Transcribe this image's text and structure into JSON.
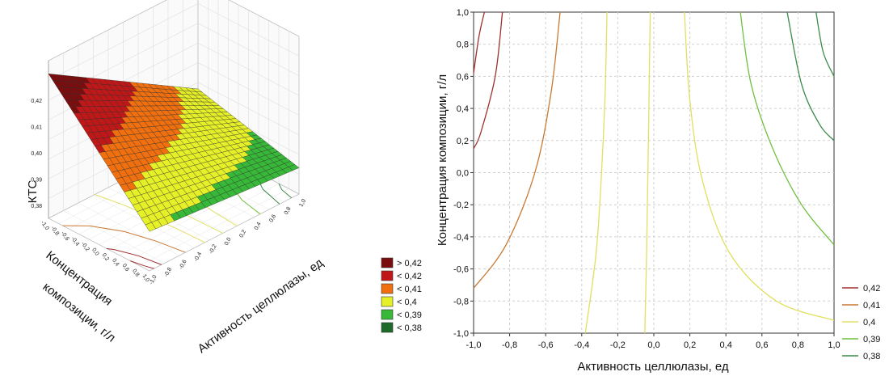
{
  "chart_data": [
    {
      "type": "surface",
      "zlabel": "КТС",
      "xlabel": "Активность целлюлазы, ед",
      "ylabel": "Концентрация композиции, г/л",
      "x_range": [
        -1.0,
        1.0
      ],
      "y_range": [
        -1.0,
        1.0
      ],
      "z_ticks": [
        "0,38",
        "0,39",
        "0,40",
        "0,41",
        "0,42"
      ],
      "x_ticks": [
        "-1,0",
        "-0,8",
        "-0,6",
        "-0,4",
        "-0,2",
        "0,0",
        "0,2",
        "0,4",
        "0,6",
        "0,8",
        "1,0"
      ],
      "y_ticks": [
        "-1,0",
        "-0,8",
        "-0,6",
        "-0,4",
        "-0,2",
        "0,0",
        "0,2",
        "0,4",
        "0,6",
        "0,8",
        "1,0"
      ],
      "surface_corners_z": {
        "x-1_y1": 0.43,
        "x1_y1": 0.395,
        "x1_y-1": 0.385,
        "x-1_y-1": 0.39
      },
      "legend": [
        {
          "label": "> 0,42",
          "color": "#7a0d0d"
        },
        {
          "label": "< 0,42",
          "color": "#c01818"
        },
        {
          "label": "< 0,41",
          "color": "#f07010"
        },
        {
          "label": "< 0,4",
          "color": "#e6f028"
        },
        {
          "label": "< 0,39",
          "color": "#38b838"
        },
        {
          "label": "< 0,38",
          "color": "#1d6a2a"
        }
      ]
    },
    {
      "type": "contour",
      "xlabel": "Активность целлюлазы, ед",
      "ylabel": "Концентрация композиции, г/л",
      "xlim": [
        -1.0,
        1.0
      ],
      "ylim": [
        -1.0,
        1.0
      ],
      "x_ticks": [
        "-1,0",
        "-0,8",
        "-0,6",
        "-0,4",
        "-0,2",
        "0,0",
        "0,2",
        "0,4",
        "0,6",
        "0,8",
        "1,0"
      ],
      "y_ticks": [
        "1,0",
        "0,8",
        "0,6",
        "0,4",
        "0,2",
        "0,0",
        "-0,2",
        "-0,4",
        "-0,6",
        "-0,8",
        "-1,0"
      ],
      "grid": true,
      "legend_position": "bottom-right",
      "series": [
        {
          "name": "0,42",
          "color": "#a03030",
          "lines": [
            [
              [
                -0.94,
                1.0
              ],
              [
                -0.97,
                0.85
              ],
              [
                -1.0,
                0.62
              ]
            ],
            [
              [
                -0.84,
                1.0
              ],
              [
                -0.88,
                0.6
              ],
              [
                -0.96,
                0.25
              ],
              [
                -1.0,
                0.15
              ]
            ]
          ]
        },
        {
          "name": "0,41",
          "color": "#c87832",
          "lines": [
            [
              [
                -0.52,
                1.0
              ],
              [
                -0.57,
                0.5
              ],
              [
                -0.66,
                0.0
              ],
              [
                -0.82,
                -0.45
              ],
              [
                -1.0,
                -0.72
              ]
            ]
          ]
        },
        {
          "name": "0,4",
          "color": "#e0e060",
          "lines": [
            [
              [
                -0.26,
                1.0
              ],
              [
                -0.27,
                0.5
              ],
              [
                -0.29,
                0.0
              ],
              [
                -0.32,
                -0.5
              ],
              [
                -0.38,
                -1.0
              ]
            ],
            [
              [
                -0.02,
                1.0
              ],
              [
                -0.03,
                0.2
              ],
              [
                -0.04,
                -0.5
              ],
              [
                -0.05,
                -1.0
              ]
            ],
            [
              [
                0.17,
                1.0
              ],
              [
                0.2,
                0.45
              ],
              [
                0.27,
                -0.05
              ],
              [
                0.42,
                -0.5
              ],
              [
                0.68,
                -0.8
              ],
              [
                1.0,
                -0.92
              ]
            ]
          ]
        },
        {
          "name": "0,39",
          "color": "#70c040",
          "lines": [
            [
              [
                0.48,
                1.0
              ],
              [
                0.54,
                0.55
              ],
              [
                0.66,
                0.15
              ],
              [
                0.82,
                -0.2
              ],
              [
                1.0,
                -0.45
              ]
            ]
          ]
        },
        {
          "name": "0,38",
          "color": "#3a8a4a",
          "lines": [
            [
              [
                0.74,
                1.0
              ],
              [
                0.82,
                0.55
              ],
              [
                0.92,
                0.3
              ],
              [
                1.0,
                0.2
              ]
            ],
            [
              [
                0.9,
                1.0
              ],
              [
                0.94,
                0.75
              ],
              [
                1.0,
                0.6
              ]
            ]
          ]
        }
      ]
    }
  ]
}
